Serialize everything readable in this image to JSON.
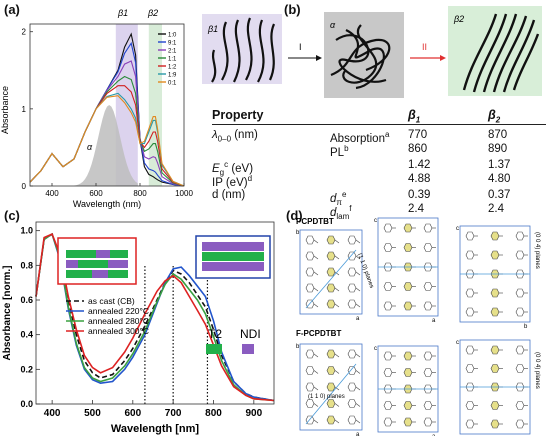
{
  "panels": {
    "a": "(a)",
    "b": "(b)",
    "c": "(c)",
    "d": "(d)"
  },
  "panel_a": {
    "ylabel": "Absorbance",
    "xlabel": "Wavelength (nm)",
    "xticks": [
      "400",
      "600",
      "800",
      "1000"
    ],
    "yticks": [
      "0",
      "1",
      "2"
    ],
    "band_labels": {
      "beta1": "β1",
      "beta2": "β2",
      "alpha": "α"
    },
    "legend": [
      "1:0",
      "9:1",
      "2:1",
      "1:1",
      "1:2",
      "1:9",
      "0:1"
    ],
    "colors": {
      "1:0": "#111111",
      "9:1": "#2244cc",
      "2:1": "#8a3fb8",
      "1:1": "#2a8a3a",
      "1:2": "#d02020",
      "1:9": "#2a9aa8",
      "0:1": "#e08a20",
      "beta1_band": "#dcd3ee",
      "beta2_band": "#d8ecd8",
      "alpha_fill": "#bdbdbd"
    }
  },
  "panel_b": {
    "label_beta1": "β1",
    "label_alpha": "α",
    "label_beta2": "β2",
    "arrow_1": "I",
    "arrow_2": "II",
    "colors": {
      "beta1_box": "#e2dcf0",
      "alpha_box": "#c8c8c8",
      "beta2_box": "#d8eed8",
      "arrow2": "#e03030"
    },
    "table": {
      "header": {
        "property": "Property",
        "beta1": "β",
        "beta1_sub": "1",
        "beta2": "β",
        "beta2_sub": "2"
      },
      "rows": [
        {
          "prop": "λ",
          "prop_sub": "0–0",
          "prop_tail": " (nm)",
          "mid": "Absorption",
          "mid_sup": "a",
          "v1": "770",
          "v2": "870"
        },
        {
          "prop": "",
          "prop_sub": "",
          "prop_tail": "",
          "mid": "PL",
          "mid_sup": "b",
          "v1": "860",
          "v2": "890"
        },
        {
          "prop": "E",
          "prop_sub": "g",
          "prop_sup": "c",
          "prop_tail": " (eV)",
          "mid": "",
          "mid_sup": "",
          "v1": "1.42",
          "v2": "1.37"
        },
        {
          "prop": "IP (eV)",
          "prop_sub": "",
          "prop_sup": "d",
          "prop_tail": "",
          "mid": "",
          "mid_sup": "",
          "v1": "4.88",
          "v2": "4.80"
        },
        {
          "prop": "d (nm)",
          "prop_sub": "",
          "prop_tail": "",
          "mid": "d",
          "mid_sub": "π",
          "mid_sup": "e",
          "v1": "0.39",
          "v2": "0.37"
        },
        {
          "prop": "",
          "prop_sub": "",
          "prop_tail": "",
          "mid": "d",
          "mid_sub": "lam",
          "mid_sup": "f",
          "v1": "2.4",
          "v2": "2.4"
        }
      ]
    }
  },
  "panel_c": {
    "ylabel": "Absorbance [norm.]",
    "xlabel": "Wavelength [nm]",
    "xticks": [
      "400",
      "500",
      "600",
      "700",
      "800",
      "900"
    ],
    "yticks": [
      "0.0",
      "0.2",
      "0.4",
      "0.6",
      "0.8",
      "1.0"
    ],
    "legend": [
      "as cast (CB)",
      "annealed 220°C",
      "annealed 280°C",
      "annealed 300°C"
    ],
    "monomer_labels": {
      "t2": "T2",
      "ndi": "NDI"
    },
    "colors": {
      "as_cast": "#111111",
      "a220": "#2255cc",
      "a280": "#3aa040",
      "a300": "#dd2222",
      "t2": "#22b04a",
      "ndi": "#8a5cc0",
      "box_red": "#dd2222",
      "box_blue": "#2244aa"
    }
  },
  "panel_d": {
    "title_top": "PCPDTBT",
    "title_bottom": "F-PCPDTBT",
    "plane_label_top": "(1 1 0) planes",
    "plane_label_bottom": "(1 1 0) planes",
    "plane_label_right_top": "(0 0 4) planes",
    "plane_label_right_bottom": "(0 0 4) planes",
    "axes": {
      "a": "a",
      "b": "b",
      "c": "c"
    }
  },
  "chart_data": [
    {
      "type": "line",
      "title": "",
      "xlabel": "Wavelength (nm)",
      "ylabel": "Absorbance",
      "xlim": [
        300,
        1000
      ],
      "ylim": [
        0,
        2.1
      ],
      "x": [
        300,
        350,
        400,
        450,
        500,
        550,
        600,
        650,
        700,
        730,
        760,
        780,
        800,
        820,
        840,
        860,
        870,
        880,
        900,
        950,
        1000
      ],
      "series": [
        {
          "name": "1:0",
          "values": [
            0.05,
            0.2,
            0.42,
            0.25,
            0.35,
            0.7,
            1.0,
            1.25,
            1.5,
            1.8,
            1.97,
            1.7,
            0.6,
            0.25,
            0.15,
            0.12,
            0.1,
            0.08,
            0.05,
            0.02,
            0.0
          ]
        },
        {
          "name": "9:1",
          "values": [
            0.05,
            0.2,
            0.42,
            0.25,
            0.35,
            0.7,
            1.0,
            1.25,
            1.48,
            1.72,
            1.85,
            1.6,
            0.62,
            0.3,
            0.22,
            0.2,
            0.18,
            0.14,
            0.07,
            0.02,
            0.0
          ]
        },
        {
          "name": "2:1",
          "values": [
            0.05,
            0.2,
            0.42,
            0.25,
            0.35,
            0.7,
            1.0,
            1.24,
            1.42,
            1.58,
            1.62,
            1.42,
            0.62,
            0.38,
            0.35,
            0.38,
            0.37,
            0.3,
            0.12,
            0.03,
            0.0
          ]
        },
        {
          "name": "1:1",
          "values": [
            0.05,
            0.2,
            0.42,
            0.25,
            0.35,
            0.7,
            1.0,
            1.22,
            1.36,
            1.42,
            1.38,
            1.2,
            0.6,
            0.45,
            0.48,
            0.55,
            0.55,
            0.45,
            0.17,
            0.04,
            0.0
          ]
        },
        {
          "name": "1:2",
          "values": [
            0.05,
            0.2,
            0.42,
            0.25,
            0.35,
            0.7,
            1.0,
            1.2,
            1.3,
            1.3,
            1.22,
            1.05,
            0.58,
            0.5,
            0.58,
            0.7,
            0.7,
            0.58,
            0.22,
            0.05,
            0.0
          ]
        },
        {
          "name": "1:9",
          "values": [
            0.05,
            0.2,
            0.42,
            0.25,
            0.35,
            0.7,
            1.0,
            1.16,
            1.2,
            1.12,
            1.0,
            0.88,
            0.55,
            0.55,
            0.7,
            0.85,
            0.85,
            0.7,
            0.27,
            0.06,
            0.0
          ]
        },
        {
          "name": "0:1",
          "values": [
            0.05,
            0.2,
            0.42,
            0.25,
            0.35,
            0.7,
            1.0,
            1.15,
            1.17,
            1.08,
            0.95,
            0.83,
            0.55,
            0.58,
            0.74,
            0.9,
            0.9,
            0.74,
            0.29,
            0.06,
            0.0
          ]
        }
      ],
      "bands": [
        {
          "name": "β1",
          "x": [
            690,
            790
          ]
        },
        {
          "name": "β2",
          "x": [
            840,
            900
          ]
        }
      ]
    },
    {
      "type": "line",
      "title": "",
      "xlabel": "Wavelength [nm]",
      "ylabel": "Absorbance [norm.]",
      "xlim": [
        360,
        950
      ],
      "ylim": [
        0,
        1.05
      ],
      "x": [
        360,
        380,
        400,
        420,
        440,
        460,
        480,
        500,
        520,
        550,
        580,
        600,
        630,
        660,
        680,
        700,
        720,
        740,
        760,
        780,
        800,
        820,
        850,
        880,
        900,
        950
      ],
      "series": [
        {
          "name": "as cast (CB)",
          "values": [
            0.62,
            0.95,
            0.98,
            0.85,
            0.6,
            0.4,
            0.25,
            0.18,
            0.15,
            0.17,
            0.25,
            0.32,
            0.45,
            0.6,
            0.7,
            0.77,
            0.75,
            0.7,
            0.63,
            0.56,
            0.43,
            0.28,
            0.13,
            0.06,
            0.04,
            0.02
          ]
        },
        {
          "name": "annealed 220°C",
          "values": [
            0.62,
            0.95,
            0.98,
            0.83,
            0.55,
            0.34,
            0.2,
            0.14,
            0.12,
            0.13,
            0.2,
            0.27,
            0.4,
            0.58,
            0.7,
            0.78,
            0.79,
            0.74,
            0.68,
            0.62,
            0.48,
            0.3,
            0.13,
            0.06,
            0.04,
            0.02
          ]
        },
        {
          "name": "annealed 280°C",
          "values": [
            0.62,
            0.95,
            0.98,
            0.84,
            0.56,
            0.35,
            0.21,
            0.15,
            0.13,
            0.15,
            0.22,
            0.29,
            0.42,
            0.59,
            0.69,
            0.75,
            0.72,
            0.66,
            0.6,
            0.52,
            0.39,
            0.25,
            0.11,
            0.05,
            0.03,
            0.02
          ]
        },
        {
          "name": "annealed 300°C",
          "values": [
            0.62,
            0.96,
            0.98,
            0.86,
            0.62,
            0.43,
            0.28,
            0.21,
            0.18,
            0.21,
            0.3,
            0.38,
            0.52,
            0.65,
            0.71,
            0.74,
            0.7,
            0.62,
            0.54,
            0.46,
            0.34,
            0.22,
            0.1,
            0.05,
            0.03,
            0.02
          ]
        }
      ],
      "vlines": [
        630,
        700,
        785
      ]
    }
  ]
}
